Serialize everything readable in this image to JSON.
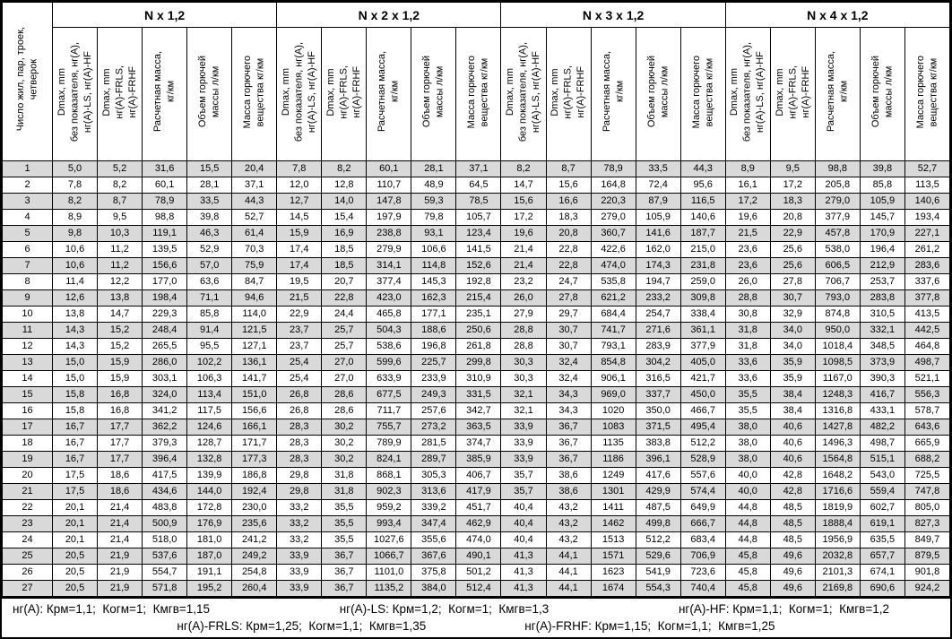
{
  "colors": {
    "stripe": "#d9d9d9",
    "border": "#000000",
    "background": "#ffffff",
    "text": "#000000"
  },
  "header": {
    "row_label": "Число жил, пар, троек,\nчетверок",
    "groups": [
      {
        "title": "N x 1,2"
      },
      {
        "title": "N x 2 x 1,2"
      },
      {
        "title": "N x 3 x 1,2"
      },
      {
        "title": "N x 4 x 1,2"
      }
    ],
    "columns": [
      "Dmax, mm\nбез показателя, нг(А),\nнг(А)-LS, нг(А)-HF",
      "Dmax, mm\nнг(А)-FRLS,\nнг(А)-FRHF",
      "Расчетная масса,\nкг/км",
      "Объем горючей\nмассы л/км",
      "Масса горючего\nвещества кг/км"
    ]
  },
  "rows": [
    {
      "n": "1",
      "cells": [
        "5,0",
        "5,2",
        "31,6",
        "15,5",
        "20,4",
        "7,8",
        "8,2",
        "60,1",
        "28,1",
        "37,1",
        "8,2",
        "8,7",
        "78,9",
        "33,5",
        "44,3",
        "8,9",
        "9,5",
        "98,8",
        "39,8",
        "52,7"
      ]
    },
    {
      "n": "2",
      "cells": [
        "7,8",
        "8,2",
        "60,1",
        "28,1",
        "37,1",
        "12,0",
        "12,8",
        "110,7",
        "48,9",
        "64,5",
        "14,7",
        "15,6",
        "164,8",
        "72,4",
        "95,6",
        "16,1",
        "17,2",
        "205,8",
        "85,8",
        "113,5"
      ]
    },
    {
      "n": "3",
      "cells": [
        "8,2",
        "8,7",
        "78,9",
        "33,5",
        "44,3",
        "12,7",
        "14,0",
        "147,8",
        "59,3",
        "78,5",
        "15,6",
        "16,6",
        "220,3",
        "87,9",
        "116,5",
        "17,2",
        "18,3",
        "279,0",
        "105,9",
        "140,6"
      ]
    },
    {
      "n": "4",
      "cells": [
        "8,9",
        "9,5",
        "98,8",
        "39,8",
        "52,7",
        "14,5",
        "15,4",
        "197,9",
        "79,8",
        "105,7",
        "17,2",
        "18,3",
        "279,0",
        "105,9",
        "140,6",
        "19,6",
        "20,8",
        "377,9",
        "145,7",
        "193,4"
      ]
    },
    {
      "n": "5",
      "cells": [
        "9,8",
        "10,3",
        "119,1",
        "46,3",
        "61,4",
        "15,9",
        "16,9",
        "238,8",
        "93,1",
        "123,4",
        "19,6",
        "20,8",
        "360,7",
        "141,6",
        "187,7",
        "21,5",
        "22,9",
        "457,8",
        "170,9",
        "227,1"
      ]
    },
    {
      "n": "6",
      "cells": [
        "10,6",
        "11,2",
        "139,5",
        "52,9",
        "70,3",
        "17,4",
        "18,5",
        "279,9",
        "106,6",
        "141,5",
        "21,4",
        "22,8",
        "422,6",
        "162,0",
        "215,0",
        "23,6",
        "25,6",
        "538,0",
        "196,4",
        "261,2"
      ]
    },
    {
      "n": "7",
      "cells": [
        "10,6",
        "11,2",
        "156,6",
        "57,0",
        "75,9",
        "17,4",
        "18,5",
        "314,1",
        "114,8",
        "152,6",
        "21,4",
        "22,8",
        "474,0",
        "174,3",
        "231,8",
        "23,6",
        "25,6",
        "606,5",
        "212,9",
        "283,6"
      ]
    },
    {
      "n": "8",
      "cells": [
        "11,4",
        "12,2",
        "177,0",
        "63,6",
        "84,7",
        "19,5",
        "20,7",
        "377,4",
        "145,3",
        "192,8",
        "23,2",
        "24,7",
        "535,8",
        "194,7",
        "259,0",
        "26,0",
        "27,8",
        "706,7",
        "253,7",
        "337,6"
      ]
    },
    {
      "n": "9",
      "cells": [
        "12,6",
        "13,8",
        "198,4",
        "71,1",
        "94,6",
        "21,5",
        "22,8",
        "423,0",
        "162,3",
        "215,4",
        "26,0",
        "27,8",
        "621,2",
        "233,2",
        "309,8",
        "28,8",
        "30,7",
        "793,0",
        "283,8",
        "377,8"
      ]
    },
    {
      "n": "10",
      "cells": [
        "13,8",
        "14,7",
        "229,3",
        "85,8",
        "114,0",
        "22,9",
        "24,4",
        "465,8",
        "177,1",
        "235,1",
        "27,9",
        "29,7",
        "684,4",
        "254,7",
        "338,4",
        "30,8",
        "32,9",
        "874,8",
        "310,5",
        "413,5"
      ]
    },
    {
      "n": "11",
      "cells": [
        "14,3",
        "15,2",
        "248,4",
        "91,4",
        "121,5",
        "23,7",
        "25,7",
        "504,3",
        "188,6",
        "250,6",
        "28,8",
        "30,7",
        "741,7",
        "271,6",
        "361,1",
        "31,8",
        "34,0",
        "950,0",
        "332,1",
        "442,5"
      ]
    },
    {
      "n": "12",
      "cells": [
        "14,3",
        "15,2",
        "265,5",
        "95,5",
        "127,1",
        "23,7",
        "25,7",
        "538,6",
        "196,8",
        "261,8",
        "28,8",
        "30,7",
        "793,1",
        "283,9",
        "377,9",
        "31,8",
        "34,0",
        "1018,4",
        "348,5",
        "464,8"
      ]
    },
    {
      "n": "13",
      "cells": [
        "15,0",
        "15,9",
        "286,0",
        "102,2",
        "136,1",
        "25,4",
        "27,0",
        "599,6",
        "225,7",
        "299,8",
        "30,3",
        "32,4",
        "854,8",
        "304,2",
        "405,0",
        "33,6",
        "35,9",
        "1098,5",
        "373,9",
        "498,7"
      ]
    },
    {
      "n": "14",
      "cells": [
        "15,0",
        "15,9",
        "303,1",
        "106,3",
        "141,7",
        "25,4",
        "27,0",
        "633,9",
        "233,9",
        "310,9",
        "30,3",
        "32,4",
        "906,1",
        "316,5",
        "421,7",
        "33,6",
        "35,9",
        "1167,0",
        "390,3",
        "521,1"
      ]
    },
    {
      "n": "15",
      "cells": [
        "15,8",
        "16,8",
        "324,0",
        "113,4",
        "151,0",
        "26,8",
        "28,6",
        "677,5",
        "249,3",
        "331,5",
        "32,1",
        "34,3",
        "969,0",
        "337,7",
        "450,0",
        "35,5",
        "38,4",
        "1248,3",
        "416,7",
        "556,3"
      ]
    },
    {
      "n": "16",
      "cells": [
        "15,8",
        "16,8",
        "341,2",
        "117,5",
        "156,6",
        "26,8",
        "28,6",
        "711,7",
        "257,6",
        "342,7",
        "32,1",
        "34,3",
        "1020",
        "350,0",
        "466,7",
        "35,5",
        "38,4",
        "1316,8",
        "433,1",
        "578,7"
      ]
    },
    {
      "n": "17",
      "cells": [
        "16,7",
        "17,7",
        "362,2",
        "124,6",
        "166,1",
        "28,3",
        "30,2",
        "755,7",
        "273,2",
        "363,5",
        "33,9",
        "36,7",
        "1083",
        "371,5",
        "495,4",
        "38,0",
        "40,6",
        "1427,8",
        "482,2",
        "643,6"
      ]
    },
    {
      "n": "18",
      "cells": [
        "16,7",
        "17,7",
        "379,3",
        "128,7",
        "171,7",
        "28,3",
        "30,2",
        "789,9",
        "281,5",
        "374,7",
        "33,9",
        "36,7",
        "1135",
        "383,8",
        "512,2",
        "38,0",
        "40,6",
        "1496,3",
        "498,7",
        "665,9"
      ]
    },
    {
      "n": "19",
      "cells": [
        "16,7",
        "17,7",
        "396,4",
        "132,8",
        "177,3",
        "28,3",
        "30,2",
        "824,1",
        "289,7",
        "385,9",
        "33,9",
        "36,7",
        "1186",
        "396,1",
        "528,9",
        "38,0",
        "40,6",
        "1564,8",
        "515,1",
        "688,2"
      ]
    },
    {
      "n": "20",
      "cells": [
        "17,5",
        "18,6",
        "417,5",
        "139,9",
        "186,8",
        "29,8",
        "31,8",
        "868,1",
        "305,3",
        "406,7",
        "35,7",
        "38,6",
        "1249",
        "417,6",
        "557,6",
        "40,0",
        "42,8",
        "1648,2",
        "543,0",
        "725,5"
      ]
    },
    {
      "n": "21",
      "cells": [
        "17,5",
        "18,6",
        "434,6",
        "144,0",
        "192,4",
        "29,8",
        "31,8",
        "902,3",
        "313,6",
        "417,9",
        "35,7",
        "38,6",
        "1301",
        "429,9",
        "574,4",
        "40,0",
        "42,8",
        "1716,6",
        "559,4",
        "747,8"
      ]
    },
    {
      "n": "22",
      "cells": [
        "20,1",
        "21,4",
        "483,8",
        "172,8",
        "230,0",
        "33,2",
        "35,5",
        "959,2",
        "339,2",
        "451,7",
        "40,4",
        "43,2",
        "1411",
        "487,5",
        "649,9",
        "44,8",
        "48,5",
        "1819,9",
        "602,7",
        "805,0"
      ]
    },
    {
      "n": "23",
      "cells": [
        "20,1",
        "21,4",
        "500,9",
        "176,9",
        "235,6",
        "33,2",
        "35,5",
        "993,4",
        "347,4",
        "462,9",
        "40,4",
        "43,2",
        "1462",
        "499,8",
        "666,7",
        "44,8",
        "48,5",
        "1888,4",
        "619,1",
        "827,3"
      ]
    },
    {
      "n": "24",
      "cells": [
        "20,1",
        "21,4",
        "518,0",
        "181,0",
        "241,2",
        "33,2",
        "35,5",
        "1027,6",
        "355,6",
        "474,0",
        "40,4",
        "43,2",
        "1513",
        "512,2",
        "683,4",
        "44,8",
        "48,5",
        "1956,9",
        "635,5",
        "849,7"
      ]
    },
    {
      "n": "25",
      "cells": [
        "20,5",
        "21,9",
        "537,6",
        "187,0",
        "249,2",
        "33,9",
        "36,7",
        "1066,7",
        "367,6",
        "490,1",
        "41,3",
        "44,1",
        "1571",
        "529,6",
        "706,9",
        "45,8",
        "49,6",
        "2032,8",
        "657,7",
        "879,5"
      ]
    },
    {
      "n": "26",
      "cells": [
        "20,5",
        "21,9",
        "554,7",
        "191,1",
        "254,8",
        "33,9",
        "36,7",
        "1101,0",
        "375,8",
        "501,2",
        "41,3",
        "44,1",
        "1623",
        "541,9",
        "723,6",
        "45,8",
        "49,6",
        "2101,3",
        "674,1",
        "901,8"
      ]
    },
    {
      "n": "27",
      "cells": [
        "20,5",
        "21,9",
        "571,8",
        "195,2",
        "260,4",
        "33,9",
        "36,7",
        "1135,2",
        "384,0",
        "512,4",
        "41,3",
        "44,1",
        "1674",
        "554,3",
        "740,4",
        "45,8",
        "49,6",
        "2169,8",
        "690,6",
        "924,2"
      ]
    }
  ],
  "footer": {
    "line1": [
      "нг(А): Крм=1,1;  Когм=1;  Кмгв=1,15",
      "нг(А)-LS: Крм=1,2;  Когм=1;  Кмгв=1,3",
      "нг(А)-HF: Крм=1,1;  Когм=1;  Кмгв=1,2"
    ],
    "line2": [
      "нг(А)-FRLS: Крм=1,25;  Когм=1,1;  Кмгв=1,35",
      "нг(А)-FRHF: Крм=1,15;  Когм=1,1;  Кмгв=1,25"
    ]
  }
}
